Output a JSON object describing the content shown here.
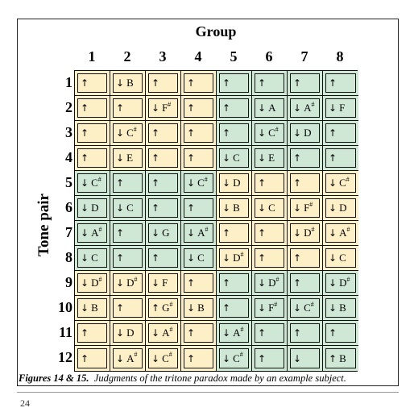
{
  "figure": {
    "group_title": "Group",
    "row_axis_title": "Tone pair",
    "groups": [
      "1",
      "2",
      "3",
      "4",
      "5",
      "6",
      "7",
      "8"
    ],
    "tone_pairs": [
      "1",
      "2",
      "3",
      "4",
      "5",
      "6",
      "7",
      "8",
      "9",
      "10",
      "11",
      "12"
    ],
    "colors": {
      "yellow": "#fdf0c6",
      "green": "#cfe8d6"
    },
    "cells": [
      [
        [
          "up",
          "",
          "y"
        ],
        [
          "down",
          "B",
          "y"
        ],
        [
          "up",
          "",
          "y"
        ],
        [
          "up",
          "",
          "y"
        ],
        [
          "up",
          "",
          "g"
        ],
        [
          "up",
          "",
          "g"
        ],
        [
          "up",
          "",
          "g"
        ],
        [
          "up",
          "",
          "g"
        ]
      ],
      [
        [
          "up",
          "",
          "y"
        ],
        [
          "up",
          "",
          "y"
        ],
        [
          "down",
          "F#",
          "y"
        ],
        [
          "up",
          "",
          "y"
        ],
        [
          "up",
          "",
          "g"
        ],
        [
          "down",
          "A",
          "g"
        ],
        [
          "down",
          "A#",
          "g"
        ],
        [
          "down",
          "F",
          "g"
        ]
      ],
      [
        [
          "up",
          "",
          "y"
        ],
        [
          "down",
          "C#",
          "y"
        ],
        [
          "up",
          "",
          "y"
        ],
        [
          "up",
          "",
          "y"
        ],
        [
          "up",
          "",
          "g"
        ],
        [
          "down",
          "C#",
          "g"
        ],
        [
          "down",
          "D",
          "g"
        ],
        [
          "up",
          "",
          "g"
        ]
      ],
      [
        [
          "up",
          "",
          "y"
        ],
        [
          "down",
          "E",
          "y"
        ],
        [
          "up",
          "",
          "y"
        ],
        [
          "up",
          "",
          "y"
        ],
        [
          "down",
          "C",
          "g"
        ],
        [
          "down",
          "E",
          "g"
        ],
        [
          "up",
          "",
          "g"
        ],
        [
          "up",
          "",
          "g"
        ]
      ],
      [
        [
          "down",
          "C#",
          "g"
        ],
        [
          "up",
          "",
          "g"
        ],
        [
          "up",
          "",
          "g"
        ],
        [
          "down",
          "C#",
          "g"
        ],
        [
          "down",
          "D",
          "y"
        ],
        [
          "up",
          "",
          "y"
        ],
        [
          "up",
          "",
          "y"
        ],
        [
          "down",
          "C#",
          "y"
        ]
      ],
      [
        [
          "down",
          "D",
          "g"
        ],
        [
          "down",
          "C",
          "g"
        ],
        [
          "up",
          "",
          "g"
        ],
        [
          "up",
          "",
          "g"
        ],
        [
          "down",
          "B",
          "y"
        ],
        [
          "down",
          "C",
          "y"
        ],
        [
          "down",
          "F#",
          "y"
        ],
        [
          "down",
          "D",
          "y"
        ]
      ],
      [
        [
          "down",
          "A#",
          "g"
        ],
        [
          "up",
          "",
          "g"
        ],
        [
          "down",
          "G",
          "g"
        ],
        [
          "down",
          "A#",
          "g"
        ],
        [
          "up",
          "",
          "y"
        ],
        [
          "up",
          "",
          "y"
        ],
        [
          "down",
          "D#",
          "y"
        ],
        [
          "down",
          "A#",
          "y"
        ]
      ],
      [
        [
          "down",
          "C",
          "g"
        ],
        [
          "up",
          "",
          "g"
        ],
        [
          "up",
          "",
          "g"
        ],
        [
          "down",
          "C",
          "g"
        ],
        [
          "down",
          "D#",
          "y"
        ],
        [
          "up",
          "",
          "y"
        ],
        [
          "up",
          "",
          "y"
        ],
        [
          "down",
          "C",
          "y"
        ]
      ],
      [
        [
          "down",
          "D#",
          "y"
        ],
        [
          "down",
          "D#",
          "y"
        ],
        [
          "down",
          "F",
          "y"
        ],
        [
          "up",
          "",
          "y"
        ],
        [
          "up",
          "",
          "g"
        ],
        [
          "down",
          "D#",
          "g"
        ],
        [
          "up",
          "",
          "g"
        ],
        [
          "down",
          "D#",
          "g"
        ]
      ],
      [
        [
          "down",
          "B",
          "y"
        ],
        [
          "up",
          "",
          "y"
        ],
        [
          "up",
          "G#",
          "y"
        ],
        [
          "down",
          "B",
          "y"
        ],
        [
          "up",
          "",
          "g"
        ],
        [
          "down",
          "F#",
          "g"
        ],
        [
          "down",
          "C#",
          "g"
        ],
        [
          "down",
          "B",
          "g"
        ]
      ],
      [
        [
          "up",
          "",
          "y"
        ],
        [
          "down",
          "D",
          "y"
        ],
        [
          "down",
          "A#",
          "y"
        ],
        [
          "up",
          "",
          "y"
        ],
        [
          "down",
          "A#",
          "g"
        ],
        [
          "up",
          "",
          "g"
        ],
        [
          "up",
          "",
          "g"
        ],
        [
          "up",
          "",
          "g"
        ]
      ],
      [
        [
          "up",
          "",
          "y"
        ],
        [
          "down",
          "A#",
          "y"
        ],
        [
          "down",
          "C#",
          "y"
        ],
        [
          "up",
          "",
          "y"
        ],
        [
          "down",
          "C#",
          "g"
        ],
        [
          "up",
          "",
          "g"
        ],
        [
          "down",
          "",
          "g"
        ],
        [
          "up",
          "B",
          "g"
        ]
      ]
    ]
  },
  "caption": {
    "label": "Figures 14 & 15.",
    "text": "Judgments of the tritone paradox made by an example subject."
  },
  "page_number": "24"
}
